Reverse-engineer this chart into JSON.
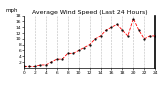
{
  "title": "Average Wind Speed (Last 24 Hours)",
  "ylabel_topleft": "mph",
  "x_values": [
    0,
    1,
    2,
    3,
    4,
    5,
    6,
    7,
    8,
    9,
    10,
    11,
    12,
    13,
    14,
    15,
    16,
    17,
    18,
    19,
    20,
    21,
    22,
    23,
    24
  ],
  "y_values": [
    0.5,
    0.5,
    0.5,
    1,
    1,
    2,
    3,
    3,
    5,
    5,
    6,
    7,
    8,
    10,
    11,
    13,
    14,
    15,
    13,
    11,
    17,
    13,
    10,
    11,
    11
  ],
  "ylim": [
    0,
    18
  ],
  "xlim": [
    0,
    24
  ],
  "line_color": "#ff0000",
  "line_style": "--",
  "marker": ".",
  "marker_color": "#000000",
  "bg_color": "#ffffff",
  "grid_color": "#bbbbbb",
  "title_fontsize": 4.5,
  "tick_fontsize": 3.2,
  "label_fontsize": 4.0,
  "yticks": [
    2,
    4,
    6,
    8,
    10,
    12,
    14,
    16,
    18
  ],
  "xticks": [
    0,
    2,
    4,
    6,
    8,
    10,
    12,
    14,
    16,
    18,
    20,
    22,
    24
  ]
}
